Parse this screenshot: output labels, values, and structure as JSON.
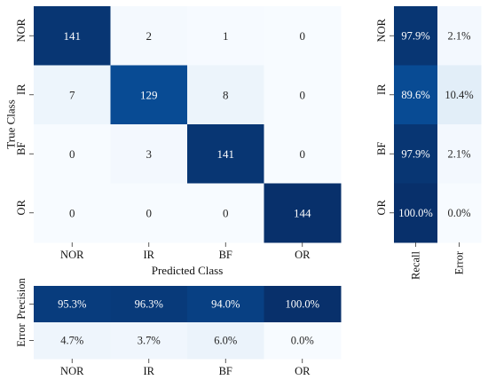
{
  "chart_data": {
    "type": "heatmap",
    "title": "",
    "classes": [
      "NOR",
      "IR",
      "BF",
      "OR"
    ],
    "confusion_matrix": {
      "rows": [
        "NOR",
        "IR",
        "BF",
        "OR"
      ],
      "cols": [
        "NOR",
        "IR",
        "BF",
        "OR"
      ],
      "values": [
        [
          141,
          2,
          1,
          0
        ],
        [
          7,
          129,
          8,
          0
        ],
        [
          0,
          3,
          141,
          0
        ],
        [
          0,
          0,
          0,
          144
        ]
      ],
      "xlabel": "Predicted Class",
      "ylabel": "True Class"
    },
    "recall_error": {
      "cols": [
        "Recall",
        "Error"
      ],
      "rows": [
        "NOR",
        "IR",
        "BF",
        "OR"
      ],
      "values": [
        [
          97.9,
          2.1
        ],
        [
          89.6,
          10.4
        ],
        [
          97.9,
          2.1
        ],
        [
          100.0,
          0.0
        ]
      ],
      "labels": [
        [
          "97.9%",
          "2.1%"
        ],
        [
          "89.6%",
          "10.4%"
        ],
        [
          "97.9%",
          "2.1%"
        ],
        [
          "100.0%",
          "0.0%"
        ]
      ]
    },
    "precision_error": {
      "rows": [
        "Precision",
        "Error"
      ],
      "cols": [
        "NOR",
        "IR",
        "BF",
        "OR"
      ],
      "values": [
        [
          95.3,
          96.3,
          94.0,
          100.0
        ],
        [
          4.7,
          3.7,
          6.0,
          0.0
        ]
      ],
      "labels": [
        [
          "95.3%",
          "96.3%",
          "94.0%",
          "100.0%"
        ],
        [
          "4.7%",
          "3.7%",
          "6.0%",
          "0.0%"
        ]
      ]
    },
    "colormap": "Blues"
  }
}
